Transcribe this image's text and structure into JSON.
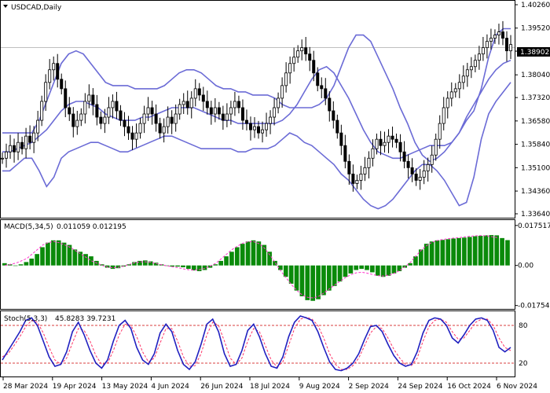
{
  "chart_data": [
    {
      "type": "candlestick",
      "title": "USDCAD,Daily",
      "current_price": "1.38902",
      "ylim": [
        1.3364,
        1.4026
      ],
      "yticks": [
        "1.40260",
        "1.39520",
        "1.38790",
        "1.38040",
        "1.37320",
        "1.36580",
        "1.35840",
        "1.35100",
        "1.34360",
        "1.33640"
      ],
      "xticks": [
        "28 Mar 2024",
        "19 Apr 2024",
        "13 May 2024",
        "4 Jun 2024",
        "26 Jun 2024",
        "18 Jul 2024",
        "9 Aug 2024",
        "2 Sep 2024",
        "24 Sep 2024",
        "16 Oct 2024",
        "6 Nov 2024"
      ],
      "close": [
        1.354,
        1.356,
        1.358,
        1.356,
        1.359,
        1.357,
        1.361,
        1.359,
        1.362,
        1.366,
        1.372,
        1.378,
        1.382,
        1.384,
        1.379,
        1.376,
        1.37,
        1.368,
        1.364,
        1.366,
        1.368,
        1.372,
        1.374,
        1.371,
        1.367,
        1.365,
        1.367,
        1.37,
        1.372,
        1.369,
        1.366,
        1.364,
        1.362,
        1.36,
        1.362,
        1.365,
        1.368,
        1.37,
        1.368,
        1.365,
        1.362,
        1.364,
        1.367,
        1.365,
        1.368,
        1.371,
        1.372,
        1.37,
        1.373,
        1.376,
        1.374,
        1.372,
        1.37,
        1.368,
        1.37,
        1.368,
        1.366,
        1.368,
        1.37,
        1.372,
        1.37,
        1.366,
        1.365,
        1.363,
        1.364,
        1.362,
        1.363,
        1.365,
        1.367,
        1.37,
        1.373,
        1.377,
        1.381,
        1.384,
        1.386,
        1.388,
        1.389,
        1.387,
        1.385,
        1.381,
        1.377,
        1.376,
        1.373,
        1.369,
        1.366,
        1.362,
        1.358,
        1.353,
        1.349,
        1.346,
        1.347,
        1.349,
        1.351,
        1.354,
        1.357,
        1.36,
        1.358,
        1.359,
        1.361,
        1.36,
        1.359,
        1.356,
        1.353,
        1.351,
        1.349,
        1.347,
        1.348,
        1.35,
        1.352,
        1.355,
        1.36,
        1.365,
        1.37,
        1.373,
        1.375,
        1.376,
        1.378,
        1.38,
        1.382,
        1.383,
        1.385,
        1.387,
        1.389,
        1.391,
        1.392,
        1.393,
        1.394,
        1.392,
        1.388,
        1.39
      ],
      "bollinger": {
        "upper": [
          1.362,
          1.362,
          1.362,
          1.362,
          1.362,
          1.366,
          1.372,
          1.378,
          1.384,
          1.387,
          1.388,
          1.387,
          1.384,
          1.381,
          1.378,
          1.377,
          1.377,
          1.377,
          1.376,
          1.376,
          1.376,
          1.376,
          1.377,
          1.379,
          1.381,
          1.382,
          1.382,
          1.381,
          1.379,
          1.377,
          1.376,
          1.376,
          1.375,
          1.375,
          1.374,
          1.374,
          1.374,
          1.373,
          1.371,
          1.37,
          1.37,
          1.37,
          1.37,
          1.371,
          1.373,
          1.377,
          1.383,
          1.389,
          1.393,
          1.393,
          1.391,
          1.386,
          1.381,
          1.376,
          1.37,
          1.365,
          1.359,
          1.355,
          1.353,
          1.354,
          1.356,
          1.359,
          1.362,
          1.366,
          1.369,
          1.376,
          1.386,
          1.393,
          1.395,
          1.395
        ],
        "middle": [
          1.356,
          1.356,
          1.357,
          1.358,
          1.359,
          1.361,
          1.363,
          1.366,
          1.369,
          1.371,
          1.372,
          1.372,
          1.371,
          1.37,
          1.368,
          1.367,
          1.366,
          1.366,
          1.366,
          1.367,
          1.367,
          1.368,
          1.369,
          1.37,
          1.37,
          1.37,
          1.37,
          1.369,
          1.368,
          1.367,
          1.366,
          1.366,
          1.365,
          1.365,
          1.365,
          1.365,
          1.365,
          1.365,
          1.366,
          1.368,
          1.371,
          1.375,
          1.379,
          1.382,
          1.383,
          1.381,
          1.377,
          1.373,
          1.368,
          1.363,
          1.359,
          1.356,
          1.355,
          1.354,
          1.354,
          1.355,
          1.356,
          1.357,
          1.358,
          1.358,
          1.358,
          1.359,
          1.362,
          1.367,
          1.371,
          1.375,
          1.379,
          1.382,
          1.384,
          1.385
        ],
        "lower": [
          1.35,
          1.35,
          1.352,
          1.354,
          1.354,
          1.35,
          1.345,
          1.348,
          1.354,
          1.356,
          1.357,
          1.358,
          1.359,
          1.359,
          1.358,
          1.357,
          1.356,
          1.356,
          1.357,
          1.358,
          1.359,
          1.36,
          1.361,
          1.361,
          1.36,
          1.359,
          1.358,
          1.357,
          1.357,
          1.357,
          1.357,
          1.357,
          1.356,
          1.356,
          1.357,
          1.357,
          1.357,
          1.358,
          1.36,
          1.362,
          1.361,
          1.359,
          1.358,
          1.356,
          1.354,
          1.352,
          1.349,
          1.347,
          1.344,
          1.341,
          1.339,
          1.338,
          1.339,
          1.341,
          1.344,
          1.347,
          1.35,
          1.352,
          1.352,
          1.35,
          1.347,
          1.343,
          1.339,
          1.34,
          1.348,
          1.36,
          1.368,
          1.372,
          1.375,
          1.378
        ]
      }
    },
    {
      "type": "histogram",
      "title": "MACD(5,34,5)",
      "values_label": "0.011059 0.012195",
      "ylim": [
        -0.018,
        0.0185
      ],
      "yticks": [
        "0.017517",
        "0.00",
        "-0.017548"
      ],
      "macd": [
        0.001,
        0.0005,
        0.0,
        0.0005,
        0.0015,
        0.003,
        0.005,
        0.008,
        0.01,
        0.011,
        0.011,
        0.01,
        0.009,
        0.007,
        0.006,
        0.005,
        0.004,
        0.002,
        0.0005,
        -0.001,
        -0.0015,
        -0.0012,
        -0.0005,
        0.0005,
        0.0015,
        0.002,
        0.0022,
        0.0018,
        0.0012,
        0.0005,
        0.0,
        -0.0005,
        -0.0005,
        -0.0008,
        -0.0015,
        -0.0022,
        -0.0025,
        -0.002,
        -0.001,
        0.0005,
        0.002,
        0.004,
        0.006,
        0.008,
        0.0095,
        0.0105,
        0.011,
        0.0105,
        0.009,
        0.006,
        0.002,
        -0.002,
        -0.005,
        -0.008,
        -0.011,
        -0.0135,
        -0.0152,
        -0.0155,
        -0.0148,
        -0.013,
        -0.011,
        -0.009,
        -0.007,
        -0.005,
        -0.0035,
        -0.002,
        -0.0015,
        -0.002,
        -0.003,
        -0.0045,
        -0.005,
        -0.0045,
        -0.0035,
        -0.0025,
        -0.001,
        0.001,
        0.004,
        0.007,
        0.0095,
        0.0105,
        0.011,
        0.0112,
        0.0115,
        0.0118,
        0.012,
        0.0122,
        0.0125,
        0.0128,
        0.013,
        0.0132,
        0.0133,
        0.0132,
        0.012,
        0.0111
      ],
      "signal": [
        0.0,
        0.0005,
        0.001,
        0.002,
        0.003,
        0.005,
        0.007,
        0.009,
        0.01,
        0.0105,
        0.01,
        0.009,
        0.008,
        0.0065,
        0.005,
        0.0035,
        0.002,
        0.001,
        0.0,
        -0.0008,
        -0.001,
        -0.0008,
        -0.0003,
        0.0005,
        0.0012,
        0.0016,
        0.0016,
        0.0014,
        0.0008,
        0.0003,
        -0.0002,
        -0.0006,
        -0.001,
        -0.0015,
        -0.0019,
        -0.002,
        -0.0018,
        -0.0012,
        -0.0002,
        0.001,
        0.003,
        0.005,
        0.007,
        0.0085,
        0.0098,
        0.0104,
        0.0104,
        0.0095,
        0.0075,
        0.0045,
        0.001,
        -0.0025,
        -0.0055,
        -0.0085,
        -0.011,
        -0.013,
        -0.014,
        -0.0142,
        -0.0135,
        -0.012,
        -0.0102,
        -0.0085,
        -0.0068,
        -0.0052,
        -0.004,
        -0.0032,
        -0.003,
        -0.0034,
        -0.004,
        -0.0045,
        -0.0046,
        -0.0042,
        -0.0034,
        -0.0022,
        -0.0005,
        0.0015,
        0.0042,
        0.0068,
        0.0088,
        0.0102,
        0.011,
        0.0114,
        0.0117,
        0.012,
        0.0122,
        0.0125,
        0.0128,
        0.013,
        0.0131,
        0.013,
        0.0126,
        0.0122
      ]
    },
    {
      "type": "line",
      "title": "Stoch(5,3,3)",
      "values_label": "45.8283 39.7231",
      "ylim": [
        0,
        100
      ],
      "yticks": [
        "80",
        "20"
      ],
      "k": [
        25,
        40,
        55,
        70,
        88,
        92,
        80,
        55,
        30,
        15,
        18,
        38,
        70,
        85,
        65,
        40,
        20,
        12,
        25,
        55,
        80,
        88,
        75,
        45,
        25,
        18,
        35,
        68,
        82,
        70,
        40,
        18,
        10,
        22,
        50,
        82,
        90,
        70,
        35,
        15,
        18,
        40,
        72,
        82,
        62,
        35,
        15,
        12,
        30,
        62,
        85,
        95,
        92,
        88,
        70,
        45,
        22,
        10,
        8,
        12,
        20,
        35,
        58,
        78,
        80,
        70,
        50,
        32,
        20,
        15,
        18,
        38,
        68,
        88,
        92,
        90,
        80,
        60,
        52,
        65,
        80,
        90,
        92,
        88,
        72,
        45,
        38,
        45
      ],
      "d": [
        30,
        35,
        48,
        62,
        78,
        88,
        85,
        68,
        45,
        25,
        18,
        28,
        52,
        75,
        72,
        55,
        32,
        18,
        20,
        40,
        65,
        82,
        80,
        62,
        38,
        22,
        28,
        52,
        75,
        75,
        55,
        30,
        15,
        16,
        35,
        65,
        85,
        80,
        55,
        28,
        18,
        28,
        55,
        75,
        70,
        48,
        25,
        14,
        22,
        48,
        75,
        90,
        93,
        90,
        80,
        60,
        35,
        18,
        10,
        10,
        16,
        28,
        48,
        68,
        78,
        75,
        60,
        42,
        28,
        18,
        16,
        28,
        55,
        78,
        88,
        90,
        85,
        70,
        58,
        60,
        72,
        85,
        90,
        90,
        80,
        60,
        45,
        40
      ]
    }
  ],
  "colors": {
    "bands": "#6b6bd6",
    "macd_hist": "#0a8a0a",
    "signal": "#ff33cc",
    "stoch_k": "#2020c0",
    "stoch_d": "#ff3366",
    "level_lines": "#cc0000",
    "candle": "#000000"
  }
}
